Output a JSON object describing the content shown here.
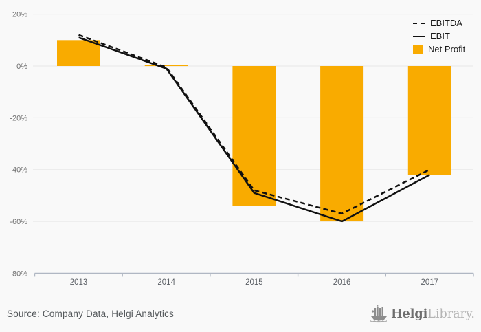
{
  "chart_data": {
    "type": "combo-bar-line",
    "categories": [
      "2013",
      "2014",
      "2015",
      "2016",
      "2017"
    ],
    "bar_series": {
      "name": "Net Profit",
      "values": [
        10,
        0.3,
        -54,
        -60,
        -42
      ],
      "color": "#F9AB00"
    },
    "line_series": [
      {
        "name": "EBITDA",
        "style": "dashed",
        "color": "#111111",
        "values": [
          12,
          -0.5,
          -48,
          -57,
          -40
        ]
      },
      {
        "name": "EBIT",
        "style": "solid",
        "color": "#111111",
        "values": [
          11,
          -1,
          -49,
          -60,
          -42
        ]
      }
    ],
    "title": "",
    "xlabel": "",
    "ylabel": "",
    "ylim": [
      -80,
      20
    ],
    "yticks": [
      20,
      0,
      -20,
      -40,
      -60,
      -80
    ],
    "ytick_labels": [
      "20%",
      "0%",
      "-20%",
      "-40%",
      "-60%",
      "-80%"
    ],
    "grid": true,
    "legend_position": "top-right",
    "colors": {
      "background": "#f9f9f9",
      "gridline": "#e8e8e8",
      "axis": "#b0b7c3",
      "line": "#111111",
      "bar": "#F9AB00",
      "ytick_text": "#6e6e6e",
      "xtick_text": "#5c6066"
    }
  },
  "footer": {
    "source": "Source: Company Data, Helgi Analytics",
    "logo": {
      "brand_bold": "Helgi",
      "brand_light": "Library."
    }
  }
}
